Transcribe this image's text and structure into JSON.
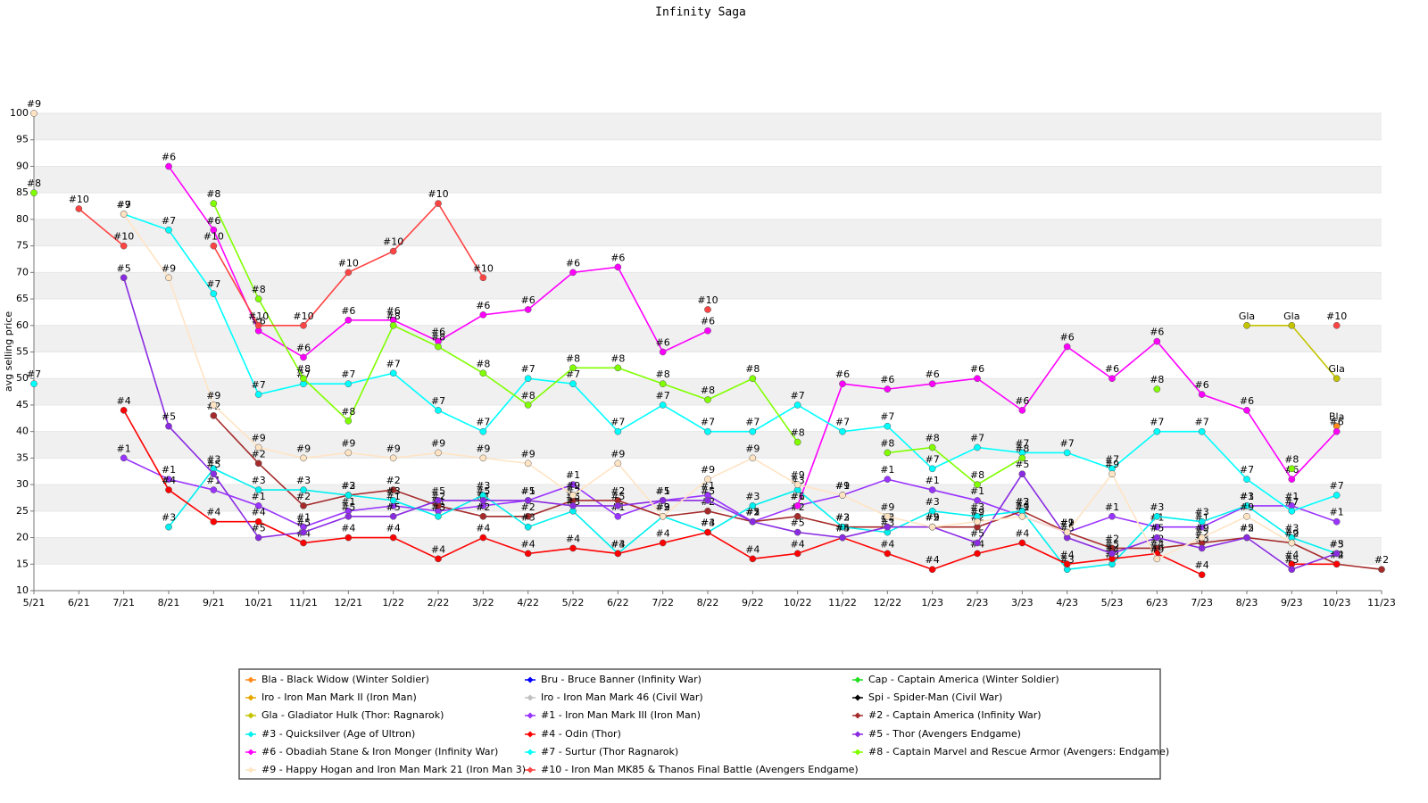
{
  "chart_data": {
    "type": "line",
    "title": "Infinity Saga",
    "y_label": "avg selling price",
    "categories": [
      "5/21",
      "6/21",
      "7/21",
      "8/21",
      "9/21",
      "10/21",
      "11/21",
      "12/21",
      "1/22",
      "2/22",
      "3/22",
      "4/22",
      "5/22",
      "6/22",
      "7/22",
      "8/22",
      "9/22",
      "10/22",
      "11/22",
      "12/22",
      "1/23",
      "2/23",
      "3/23",
      "4/23",
      "5/23",
      "6/23",
      "7/23",
      "8/23",
      "9/23",
      "10/23",
      "11/23"
    ],
    "ylim": [
      10,
      100
    ],
    "yticks": [
      10,
      15,
      20,
      25,
      30,
      35,
      40,
      45,
      50,
      55,
      60,
      65,
      70,
      75,
      80,
      85,
      90,
      95,
      100
    ],
    "grid": true,
    "series": [
      {
        "name": "Bla - Black Widow (Winter Soldier)",
        "label": "Bla",
        "color": "#ff8c1a",
        "values": [
          null,
          null,
          null,
          null,
          null,
          null,
          null,
          null,
          null,
          null,
          null,
          null,
          null,
          null,
          null,
          null,
          null,
          null,
          null,
          null,
          null,
          null,
          null,
          null,
          null,
          null,
          null,
          null,
          null,
          41,
          null
        ]
      },
      {
        "name": "Bru - Bruce Banner (Infinity War)",
        "label": "Bru",
        "color": "#0000ff",
        "values": [
          null,
          null,
          null,
          null,
          null,
          null,
          null,
          null,
          null,
          null,
          null,
          null,
          null,
          null,
          null,
          null,
          null,
          null,
          null,
          null,
          null,
          null,
          null,
          null,
          null,
          null,
          null,
          null,
          null,
          null,
          null
        ]
      },
      {
        "name": "Cap - Captain America (Winter Soldier)",
        "label": "Cap",
        "color": "#22dd22",
        "values": [
          null,
          null,
          null,
          null,
          null,
          null,
          null,
          null,
          null,
          null,
          null,
          null,
          null,
          null,
          null,
          null,
          null,
          null,
          null,
          null,
          null,
          null,
          null,
          null,
          null,
          null,
          null,
          null,
          null,
          null,
          null
        ]
      },
      {
        "name": "Iro - Iron Man Mark II (Iron Man)",
        "label": "Iro",
        "color": "#e6a800",
        "values": [
          null,
          null,
          null,
          null,
          null,
          null,
          null,
          null,
          null,
          null,
          null,
          null,
          null,
          null,
          null,
          null,
          null,
          null,
          null,
          null,
          null,
          null,
          null,
          null,
          null,
          null,
          null,
          null,
          null,
          null,
          null
        ]
      },
      {
        "name": "Iro - Iron Man Mark 46 (Civil War)",
        "label": "Iro",
        "color": "#c0c0c0",
        "values": [
          null,
          null,
          null,
          null,
          null,
          null,
          null,
          null,
          null,
          null,
          null,
          null,
          null,
          null,
          null,
          null,
          null,
          null,
          null,
          null,
          null,
          null,
          null,
          null,
          null,
          null,
          null,
          null,
          null,
          null,
          null
        ]
      },
      {
        "name": "Spi - Spider-Man (Civil War)",
        "label": "Spi",
        "color": "#000000",
        "values": [
          null,
          null,
          null,
          null,
          null,
          null,
          null,
          null,
          null,
          null,
          null,
          null,
          null,
          null,
          null,
          null,
          null,
          null,
          null,
          null,
          null,
          null,
          null,
          null,
          null,
          null,
          null,
          null,
          null,
          null,
          null
        ]
      },
      {
        "name": "Gla - Gladiator Hulk (Thor: Ragnarok)",
        "label": "Gla",
        "color": "#c4c400",
        "values": [
          null,
          null,
          null,
          null,
          null,
          null,
          null,
          null,
          null,
          null,
          null,
          null,
          null,
          null,
          null,
          null,
          null,
          null,
          null,
          null,
          null,
          null,
          null,
          null,
          null,
          null,
          null,
          60,
          60,
          50,
          null
        ]
      },
      {
        "name": "#1 - Iron Man Mark III (Iron Man)",
        "label": "#1",
        "color": "#9933ff",
        "values": [
          null,
          null,
          35,
          31,
          29,
          26,
          22,
          25,
          26,
          25,
          26,
          27,
          30,
          24,
          27,
          28,
          23,
          26,
          28,
          31,
          29,
          27,
          24,
          21,
          24,
          22,
          22,
          26,
          26,
          23,
          null
        ]
      },
      {
        "name": "#2 - Captain America (Infinity War)",
        "label": "#2",
        "color": "#a52a2a",
        "values": [
          null,
          null,
          null,
          null,
          43,
          34,
          26,
          28,
          29,
          26,
          24,
          24,
          27,
          27,
          24,
          25,
          23,
          24,
          22,
          22,
          22,
          22,
          25,
          21,
          18,
          18,
          19,
          20,
          19,
          15,
          14
        ]
      },
      {
        "name": "#3 - Quicksilver (Age of Ultron)",
        "label": "#3",
        "color": "#00f0f0",
        "values": [
          null,
          null,
          null,
          22,
          33,
          29,
          29,
          28,
          27,
          24,
          28,
          22,
          25,
          17,
          24,
          21,
          26,
          29,
          22,
          21,
          25,
          24,
          25,
          14,
          15,
          24,
          23,
          26,
          20,
          17,
          null
        ]
      },
      {
        "name": "#4 - Odin (Thor)",
        "label": "#4",
        "color": "#ff0000",
        "values": [
          null,
          null,
          44,
          29,
          23,
          23,
          19,
          20,
          20,
          16,
          20,
          17,
          18,
          17,
          19,
          21,
          16,
          17,
          20,
          17,
          14,
          17,
          19,
          15,
          16,
          17,
          13,
          null,
          15,
          15,
          null
        ]
      },
      {
        "name": "#5 - Thor (Avengers Endgame)",
        "label": "#5",
        "color": "#8a2be2",
        "values": [
          null,
          null,
          69,
          41,
          32,
          20,
          21,
          24,
          24,
          27,
          27,
          27,
          26,
          26,
          27,
          27,
          23,
          21,
          20,
          22,
          22,
          19,
          32,
          20,
          17,
          20,
          18,
          20,
          14,
          17,
          null
        ]
      },
      {
        "name": "#6 - Obadiah Stane & Iron Monger (Infinity War)",
        "label": "#6",
        "color": "#ff00ff",
        "values": [
          null,
          null,
          null,
          90,
          78,
          59,
          54,
          61,
          61,
          57,
          62,
          63,
          70,
          71,
          55,
          59,
          null,
          26,
          49,
          48,
          49,
          50,
          44,
          56,
          50,
          57,
          47,
          44,
          31,
          40,
          null
        ]
      },
      {
        "name": "#7 - Surtur (Thor Ragnarok)",
        "label": "#7",
        "color": "#00ffff",
        "values": [
          49,
          null,
          81,
          78,
          66,
          47,
          49,
          49,
          51,
          44,
          40,
          50,
          49,
          40,
          45,
          40,
          40,
          45,
          40,
          41,
          33,
          37,
          36,
          36,
          33,
          40,
          40,
          31,
          25,
          28,
          null
        ]
      },
      {
        "name": "#8 - Captain Marvel and Rescue Armor (Avengers: Endgame)",
        "label": "#8",
        "color": "#80ff00",
        "values": [
          85,
          null,
          null,
          null,
          83,
          65,
          50,
          42,
          60,
          56,
          51,
          45,
          52,
          52,
          49,
          46,
          50,
          38,
          null,
          36,
          37,
          30,
          35,
          null,
          null,
          48,
          null,
          null,
          33,
          null,
          null
        ]
      },
      {
        "name": "#9 - Happy Hogan and Iron Man Mark 21 (Iron Man 3)",
        "label": "#9",
        "color": "#ffe4c4",
        "values": [
          100,
          null,
          81,
          69,
          45,
          37,
          35,
          36,
          35,
          36,
          35,
          34,
          28,
          34,
          24,
          31,
          35,
          30,
          28,
          24,
          22,
          23,
          24,
          21,
          32,
          16,
          20,
          24,
          19,
          null,
          null
        ]
      },
      {
        "name": "#10 - Iron Man MK85 & Thanos Final Battle (Avengers Endgame)",
        "label": "#10",
        "color": "#ff4444",
        "values": [
          null,
          82,
          75,
          null,
          75,
          60,
          60,
          70,
          74,
          83,
          69,
          null,
          null,
          null,
          null,
          63,
          null,
          null,
          null,
          null,
          null,
          null,
          null,
          null,
          null,
          null,
          null,
          null,
          null,
          60,
          null
        ]
      }
    ]
  }
}
